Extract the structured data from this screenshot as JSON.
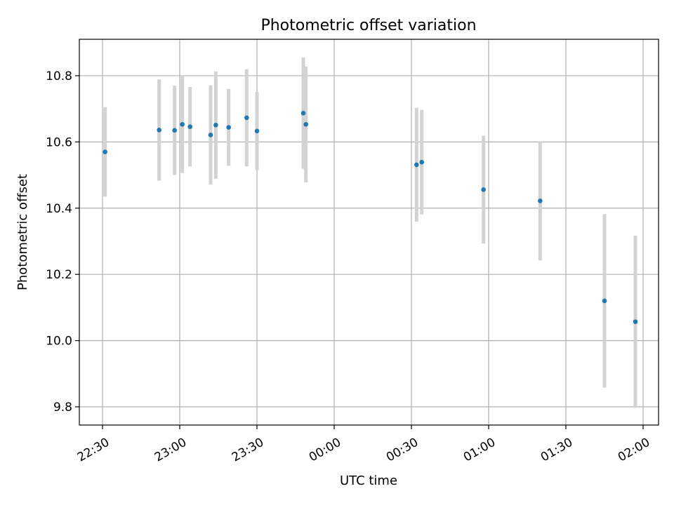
{
  "chart_data": {
    "type": "scatter",
    "title": "Photometric offset variation",
    "xlabel": "UTC time",
    "ylabel": "Photometric offset",
    "x_unit": "UTC time of day (HH:MM)",
    "xlim": [
      "22:21",
      "02:06"
    ],
    "ylim": [
      9.745,
      10.91
    ],
    "x_ticks": [
      "22:30",
      "23:00",
      "23:30",
      "00:00",
      "00:30",
      "01:00",
      "01:30",
      "02:00"
    ],
    "y_ticks": [
      9.8,
      10.0,
      10.2,
      10.4,
      10.6,
      10.8
    ],
    "y_tick_labels": [
      "9.8",
      "10.0",
      "10.2",
      "10.4",
      "10.6",
      "10.8"
    ],
    "grid": true,
    "colors": {
      "marker": "#1f77b4",
      "errorbar": "#d3d3d3",
      "grid": "#b0b0b0"
    },
    "series": [
      {
        "points": [
          {
            "x": "22:31",
            "y": 10.57,
            "yerr": 0.135
          },
          {
            "x": "22:52",
            "y": 10.636,
            "yerr": 0.153
          },
          {
            "x": "22:58",
            "y": 10.635,
            "yerr": 0.135
          },
          {
            "x": "23:01",
            "y": 10.653,
            "yerr": 0.147
          },
          {
            "x": "23:04",
            "y": 10.646,
            "yerr": 0.12
          },
          {
            "x": "23:12",
            "y": 10.621,
            "yerr": 0.15
          },
          {
            "x": "23:14",
            "y": 10.651,
            "yerr": 0.162
          },
          {
            "x": "23:19",
            "y": 10.644,
            "yerr": 0.116
          },
          {
            "x": "23:26",
            "y": 10.673,
            "yerr": 0.147
          },
          {
            "x": "23:30",
            "y": 10.633,
            "yerr": 0.118
          },
          {
            "x": "23:48",
            "y": 10.687,
            "yerr": 0.168
          },
          {
            "x": "23:49",
            "y": 10.653,
            "yerr": 0.175
          },
          {
            "x": "00:32",
            "y": 10.531,
            "yerr": 0.172
          },
          {
            "x": "00:34",
            "y": 10.539,
            "yerr": 0.158
          },
          {
            "x": "00:58",
            "y": 10.456,
            "yerr": 0.163
          },
          {
            "x": "01:20",
            "y": 10.422,
            "yerr": 0.18
          },
          {
            "x": "01:45",
            "y": 10.12,
            "yerr": 0.262
          },
          {
            "x": "01:57",
            "y": 10.057,
            "yerr": 0.26
          }
        ]
      }
    ]
  }
}
